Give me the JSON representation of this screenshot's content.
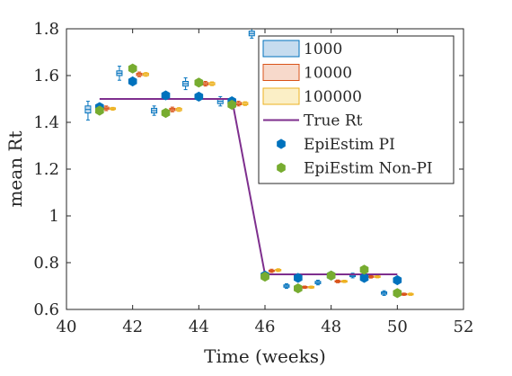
{
  "chart_data": {
    "type": "scatter",
    "xlabel": "Time (weeks)",
    "ylabel": "mean Rt",
    "xlim": [
      40,
      52
    ],
    "ylim": [
      0.6,
      1.8
    ],
    "xticks": [
      "40",
      "42",
      "44",
      "46",
      "48",
      "50",
      "52"
    ],
    "yticks": [
      "0.6",
      "0.8",
      "1",
      "1.2",
      "1.4",
      "1.6",
      "1.8"
    ],
    "grid": false,
    "legend_position": "top-right",
    "legend": [
      "1000",
      "10000",
      "100000",
      "True Rt",
      "EpiEstim PI",
      "EpiEstim Non-PI"
    ],
    "colors": {
      "box_1000": "#0072BD",
      "box_1000_fill": "#c6dcef",
      "box_10000": "#D95319",
      "box_10000_fill": "#f7d9cb",
      "box_100000": "#EDB120",
      "box_100000_fill": "#fbefc6",
      "true_rt": "#7E2F8E",
      "pi": "#0072BD",
      "non_pi": "#77AC30"
    },
    "true_rt": {
      "x": [
        41,
        45,
        46,
        50
      ],
      "y": [
        1.5,
        1.5,
        0.75,
        0.75
      ]
    },
    "boxplots": {
      "1000": {
        "x": [
          40.65,
          41.6,
          42.65,
          43.6,
          44.65,
          45.6,
          46.65,
          47.6,
          48.65,
          49.6
        ],
        "median": [
          1.455,
          1.61,
          1.45,
          1.565,
          1.49,
          1.78,
          0.7,
          0.715,
          0.745,
          0.67
        ],
        "q1": [
          1.44,
          1.6,
          1.44,
          1.555,
          1.48,
          1.77,
          0.695,
          0.71,
          0.74,
          0.665
        ],
        "q3": [
          1.47,
          1.62,
          1.46,
          1.575,
          1.5,
          1.79,
          0.705,
          0.72,
          0.75,
          0.675
        ],
        "min": [
          1.41,
          1.58,
          1.43,
          1.54,
          1.47,
          1.76,
          0.69,
          0.705,
          0.735,
          0.66
        ],
        "max": [
          1.49,
          1.64,
          1.47,
          1.59,
          1.51,
          1.8,
          0.71,
          0.725,
          0.755,
          0.68
        ]
      },
      "10000": {
        "x": [
          41.2,
          42.2,
          43.2,
          44.2,
          45.2,
          46.2,
          47.2,
          48.2,
          49.2,
          50.2
        ],
        "median": [
          1.46,
          1.605,
          1.455,
          1.565,
          1.48,
          0.765,
          0.695,
          0.72,
          0.74,
          0.665
        ],
        "q1": [
          1.455,
          1.6,
          1.45,
          1.56,
          1.475,
          0.762,
          0.692,
          0.717,
          0.737,
          0.662
        ],
        "q3": [
          1.465,
          1.61,
          1.46,
          1.57,
          1.485,
          0.768,
          0.698,
          0.723,
          0.743,
          0.668
        ],
        "min": [
          1.45,
          1.595,
          1.445,
          1.555,
          1.47,
          0.758,
          0.69,
          0.714,
          0.734,
          0.66
        ],
        "max": [
          1.47,
          1.615,
          1.465,
          1.575,
          1.49,
          0.772,
          0.7,
          0.726,
          0.746,
          0.67
        ]
      },
      "100000": {
        "x": [
          41.4,
          42.4,
          43.4,
          44.4,
          45.4,
          46.4,
          47.4,
          48.4,
          49.4,
          50.4
        ],
        "median": [
          1.458,
          1.605,
          1.455,
          1.565,
          1.48,
          0.768,
          0.695,
          0.72,
          0.74,
          0.665
        ],
        "q1": [
          1.455,
          1.6,
          1.45,
          1.56,
          1.475,
          0.765,
          0.692,
          0.717,
          0.737,
          0.662
        ],
        "q3": [
          1.462,
          1.61,
          1.46,
          1.57,
          1.485,
          0.771,
          0.698,
          0.723,
          0.743,
          0.668
        ],
        "min": [
          1.452,
          1.597,
          1.447,
          1.557,
          1.472,
          0.762,
          0.69,
          0.715,
          0.735,
          0.66
        ],
        "max": [
          1.464,
          1.613,
          1.463,
          1.573,
          1.488,
          0.774,
          0.7,
          0.725,
          0.745,
          0.67
        ]
      }
    },
    "series": [
      {
        "name": "EpiEstim PI",
        "x": [
          41,
          42,
          43,
          44,
          45,
          46,
          47,
          48,
          49,
          50
        ],
        "y": [
          1.465,
          1.575,
          1.515,
          1.51,
          1.49,
          0.745,
          0.735,
          0.745,
          0.735,
          0.725
        ]
      },
      {
        "name": "EpiEstim Non-PI",
        "x": [
          41,
          42,
          43,
          44,
          45,
          46,
          47,
          48,
          49,
          50
        ],
        "y": [
          1.45,
          1.63,
          1.44,
          1.57,
          1.475,
          0.74,
          0.69,
          0.745,
          0.77,
          0.67
        ]
      }
    ]
  }
}
